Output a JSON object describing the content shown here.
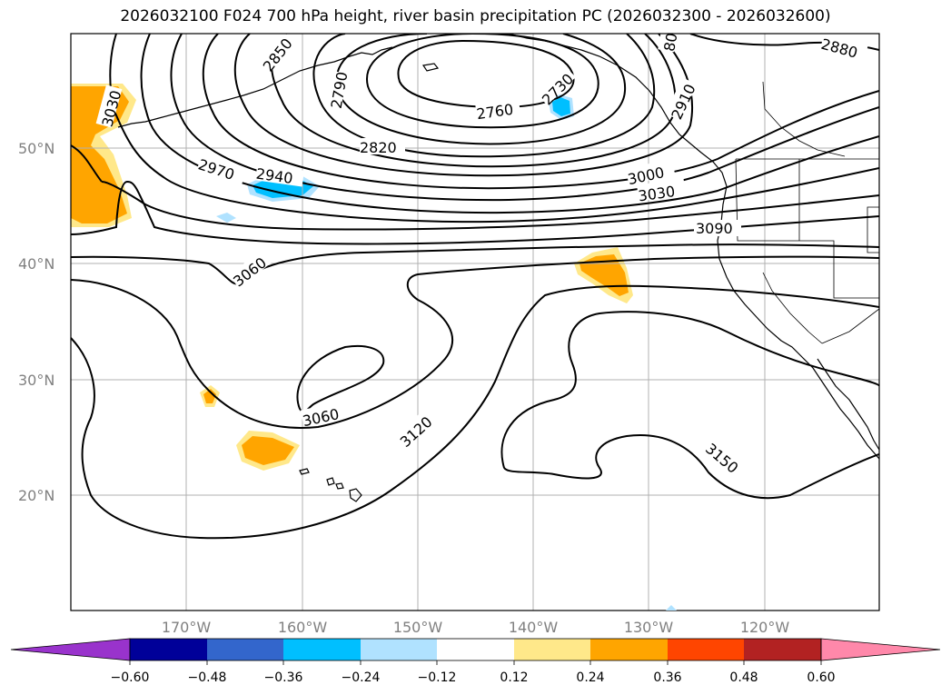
{
  "title": "2026032100 F024 700 hPa height, river basin precipitation PC (2026032300 - 2026032600)",
  "lat_labels": [
    "50°N",
    "40°N",
    "30°N",
    "20°N"
  ],
  "lon_labels": [
    "170°W",
    "160°W",
    "150°W",
    "140°W",
    "130°W",
    "120°W"
  ],
  "colorbar": {
    "colors": [
      "#9933cc",
      "#000099",
      "#3366cc",
      "#00bfff",
      "#b0e2ff",
      "#ffffff",
      "#ffe88a",
      "#ffa500",
      "#ff4500",
      "#b22222",
      "#ff88aa"
    ],
    "ticks": [
      "−0.60",
      "−0.48",
      "−0.36",
      "−0.24",
      "−0.12",
      "0.12",
      "0.24",
      "0.36",
      "0.48",
      "0.60"
    ]
  },
  "contour_labels": [
    "2850",
    "2790",
    "2760",
    "2730",
    "2820",
    "2880",
    "2910",
    "3030",
    "2970",
    "2940",
    "3000",
    "3030",
    "3090",
    "3060",
    "3060",
    "3120",
    "3150",
    "80"
  ]
}
